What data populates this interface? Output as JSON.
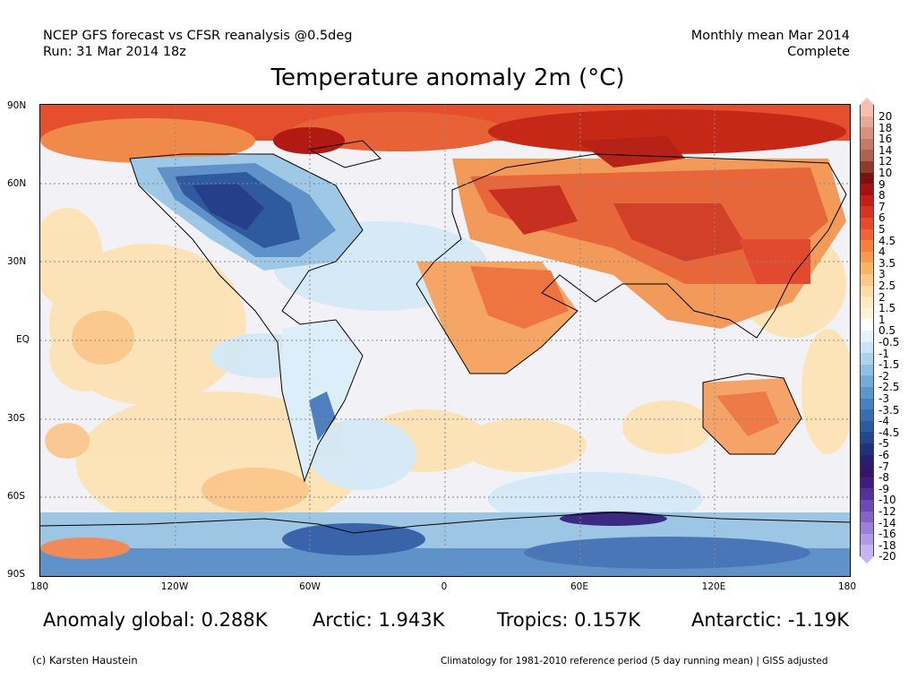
{
  "header": {
    "line1_left": "NCEP GFS forecast vs CFSR reanalysis @0.5deg",
    "line2_left": "Run: 31 Mar 2014 18z",
    "line1_right": "Monthly mean Mar 2014",
    "line2_right": "Complete"
  },
  "title": "Temperature anomaly 2m (°C)",
  "axes": {
    "lat_labels": [
      "90N",
      "60N",
      "30N",
      "EQ",
      "30S",
      "60S",
      "90S"
    ],
    "lon_labels": [
      "180",
      "120W",
      "60W",
      "0",
      "60E",
      "120E",
      "180"
    ]
  },
  "colorbar": {
    "labels": [
      "20",
      "18",
      "16",
      "14",
      "12",
      "10",
      "9",
      "8",
      "7",
      "6",
      "5",
      "4.5",
      "4",
      "3.5",
      "3",
      "2.5",
      "2",
      "1.5",
      "1",
      "0.5",
      "-0.5",
      "-1",
      "-1.5",
      "-2",
      "-2.5",
      "-3",
      "-3.5",
      "-4",
      "-4.5",
      "-5",
      "-6",
      "-7",
      "-8",
      "-9",
      "-10",
      "-12",
      "-14",
      "-16",
      "-18",
      "-20"
    ],
    "colors": [
      "#f5c0b0",
      "#e8a896",
      "#d8927c",
      "#c47a64",
      "#ae6350",
      "#8e3a2c",
      "#7a1010",
      "#a41212",
      "#c41f14",
      "#d63224",
      "#e44a2c",
      "#ef6434",
      "#f5803e",
      "#f89a4e",
      "#fab466",
      "#fcc986",
      "#fddba4",
      "#fee9c0",
      "#fff3da",
      "#ffffff",
      "#e4f2fa",
      "#c9e4f4",
      "#add3ec",
      "#90c1e3",
      "#74acd8",
      "#5c97cc",
      "#4882be",
      "#386eb0",
      "#2c5aa0",
      "#22478e",
      "#1e337c",
      "#261e6e",
      "#331666",
      "#421b80",
      "#54309a",
      "#6a4ab6",
      "#8264c8",
      "#9a80d8",
      "#b09ae4",
      "#c6b4ee"
    ]
  },
  "stats": {
    "global": "Anomaly global: 0.288K",
    "arctic": "Arctic: 1.943K",
    "tropics": "Tropics: 0.157K",
    "antarctic": "Antarctic: -1.19K"
  },
  "footer": {
    "left": "(c) Karsten Haustein",
    "right": "Climatology for 1981-2010 reference period (5 day running mean) | GISS adjusted"
  }
}
